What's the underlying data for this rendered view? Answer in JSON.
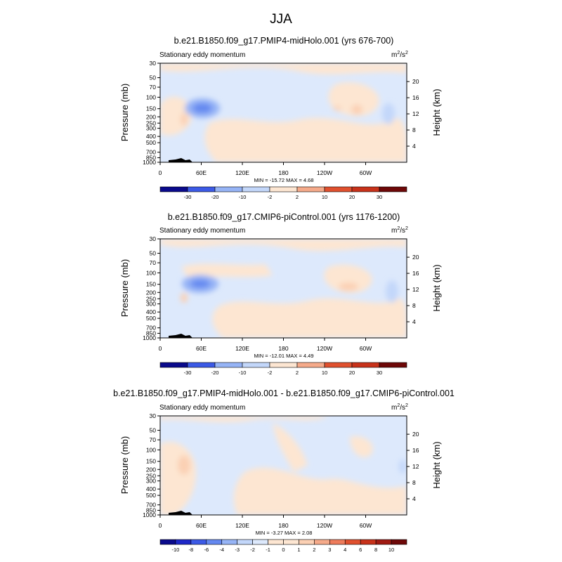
{
  "page_title": "JJA",
  "chart_data": [
    {
      "type": "heatmap",
      "title": "b.e21.B1850.f09_g17.PMIP4-midHolo.001 (yrs 676-700)",
      "left_label": "Stationary eddy momentum",
      "units_base": "m",
      "units_sup1": "2",
      "units_mid": "/s",
      "units_sup2": "2",
      "ylabel": "Pressure (mb)",
      "ylabel_right": "Height (km)",
      "x_ticks": [
        "0",
        "60E",
        "120E",
        "180",
        "120W",
        "60W"
      ],
      "x_tick_values": [
        0,
        60,
        120,
        180,
        240,
        300
      ],
      "xlim": [
        0,
        360
      ],
      "y_ticks": [
        "30",
        "50",
        "70",
        "100",
        "150",
        "200",
        "250",
        "300",
        "400",
        "500",
        "700",
        "850",
        "1000"
      ],
      "y_tick_values": [
        30,
        50,
        70,
        100,
        150,
        200,
        250,
        300,
        400,
        500,
        700,
        850,
        1000
      ],
      "ylim": [
        1000,
        30
      ],
      "y_scale": "log",
      "height_ticks": [
        "4",
        "8",
        "12",
        "16",
        "20"
      ],
      "height_tick_values": [
        4,
        8,
        12,
        16,
        20
      ],
      "stats": "MIN = -15.72  MAX =   4.68",
      "background_level": "-2 to 0",
      "features": [
        {
          "x": 62,
          "p": 150,
          "value": -15.7
        },
        {
          "x": 200,
          "p": 80,
          "value": -3
        },
        {
          "x": 330,
          "p": 180,
          "value": -4
        },
        {
          "x": 35,
          "p": 210,
          "value": 3
        },
        {
          "x": 262,
          "p": 150,
          "value": 4.5
        },
        {
          "x": 290,
          "p": 170,
          "value": 4
        }
      ],
      "colorbar_labels": [
        "-30",
        "-20",
        "-10",
        "-2",
        "2",
        "10",
        "20",
        "30"
      ]
    },
    {
      "type": "heatmap",
      "title": "b.e21.B1850.f09_g17.CMIP6-piControl.001 (yrs 1176-1200)",
      "left_label": "Stationary eddy momentum",
      "units_base": "m",
      "units_sup1": "2",
      "units_mid": "/s",
      "units_sup2": "2",
      "ylabel": "Pressure (mb)",
      "ylabel_right": "Height (km)",
      "x_ticks": [
        "0",
        "60E",
        "120E",
        "180",
        "120W",
        "60W"
      ],
      "x_tick_values": [
        0,
        60,
        120,
        180,
        240,
        300
      ],
      "xlim": [
        0,
        360
      ],
      "y_ticks": [
        "30",
        "50",
        "70",
        "100",
        "150",
        "200",
        "250",
        "300",
        "400",
        "500",
        "700",
        "850",
        "1000"
      ],
      "y_tick_values": [
        30,
        50,
        70,
        100,
        150,
        200,
        250,
        300,
        400,
        500,
        700,
        850,
        1000
      ],
      "ylim": [
        1000,
        30
      ],
      "y_scale": "log",
      "height_ticks": [
        "4",
        "8",
        "12",
        "16",
        "20"
      ],
      "height_tick_values": [
        4,
        8,
        12,
        16,
        20
      ],
      "stats": "MIN = -12.01  MAX =   4.49",
      "background_level": "-2 to 0",
      "features": [
        {
          "x": 58,
          "p": 150,
          "value": -12.0
        },
        {
          "x": 200,
          "p": 80,
          "value": -3
        },
        {
          "x": 335,
          "p": 180,
          "value": -4
        },
        {
          "x": 35,
          "p": 210,
          "value": 3
        },
        {
          "x": 268,
          "p": 150,
          "value": 4.5
        }
      ],
      "colorbar_labels": [
        "-30",
        "-20",
        "-10",
        "-2",
        "2",
        "10",
        "20",
        "30"
      ]
    },
    {
      "type": "heatmap",
      "title": "b.e21.B1850.f09_g17.PMIP4-midHolo.001 - b.e21.B1850.f09_g17.CMIP6-piControl.001",
      "left_label": "Stationary eddy momentum",
      "units_base": "m",
      "units_sup1": "2",
      "units_mid": "/s",
      "units_sup2": "2",
      "ylabel": "Pressure (mb)",
      "ylabel_right": "Height (km)",
      "x_ticks": [
        "0",
        "60E",
        "120E",
        "180",
        "120W",
        "60W"
      ],
      "x_tick_values": [
        0,
        60,
        120,
        180,
        240,
        300
      ],
      "xlim": [
        0,
        360
      ],
      "y_ticks": [
        "30",
        "50",
        "70",
        "100",
        "150",
        "200",
        "250",
        "300",
        "400",
        "500",
        "700",
        "850",
        "1000"
      ],
      "y_tick_values": [
        30,
        50,
        70,
        100,
        150,
        200,
        250,
        300,
        400,
        500,
        700,
        850,
        1000
      ],
      "ylim": [
        1000,
        30
      ],
      "y_scale": "log",
      "height_ticks": [
        "4",
        "8",
        "12",
        "16",
        "20"
      ],
      "height_tick_values": [
        4,
        8,
        12,
        16,
        20
      ],
      "stats": "MIN =  -3.27  MAX =   2.08",
      "background_level": "-1 to 0",
      "features": [
        {
          "x": 35,
          "p": 180,
          "value": 2.08
        },
        {
          "x": 200,
          "p": 60,
          "value": 0.5
        },
        {
          "x": 330,
          "p": 160,
          "value": -1.5
        }
      ],
      "colorbar_labels": [
        "-10",
        "-8",
        "-6",
        "-4",
        "-3",
        "-2",
        "-1",
        "0",
        "1",
        "2",
        "3",
        "4",
        "6",
        "8",
        "10"
      ]
    }
  ],
  "palette": [
    "#0a0a8c",
    "#1e28c8",
    "#3c5ae6",
    "#6488f0",
    "#96b4f6",
    "#c3d7fa",
    "#dde9fc",
    "#fde6d2",
    "#fbd0b4",
    "#f5aa8a",
    "#ee7c5c",
    "#e0502e",
    "#c8321a",
    "#a01a12",
    "#6e0808"
  ]
}
